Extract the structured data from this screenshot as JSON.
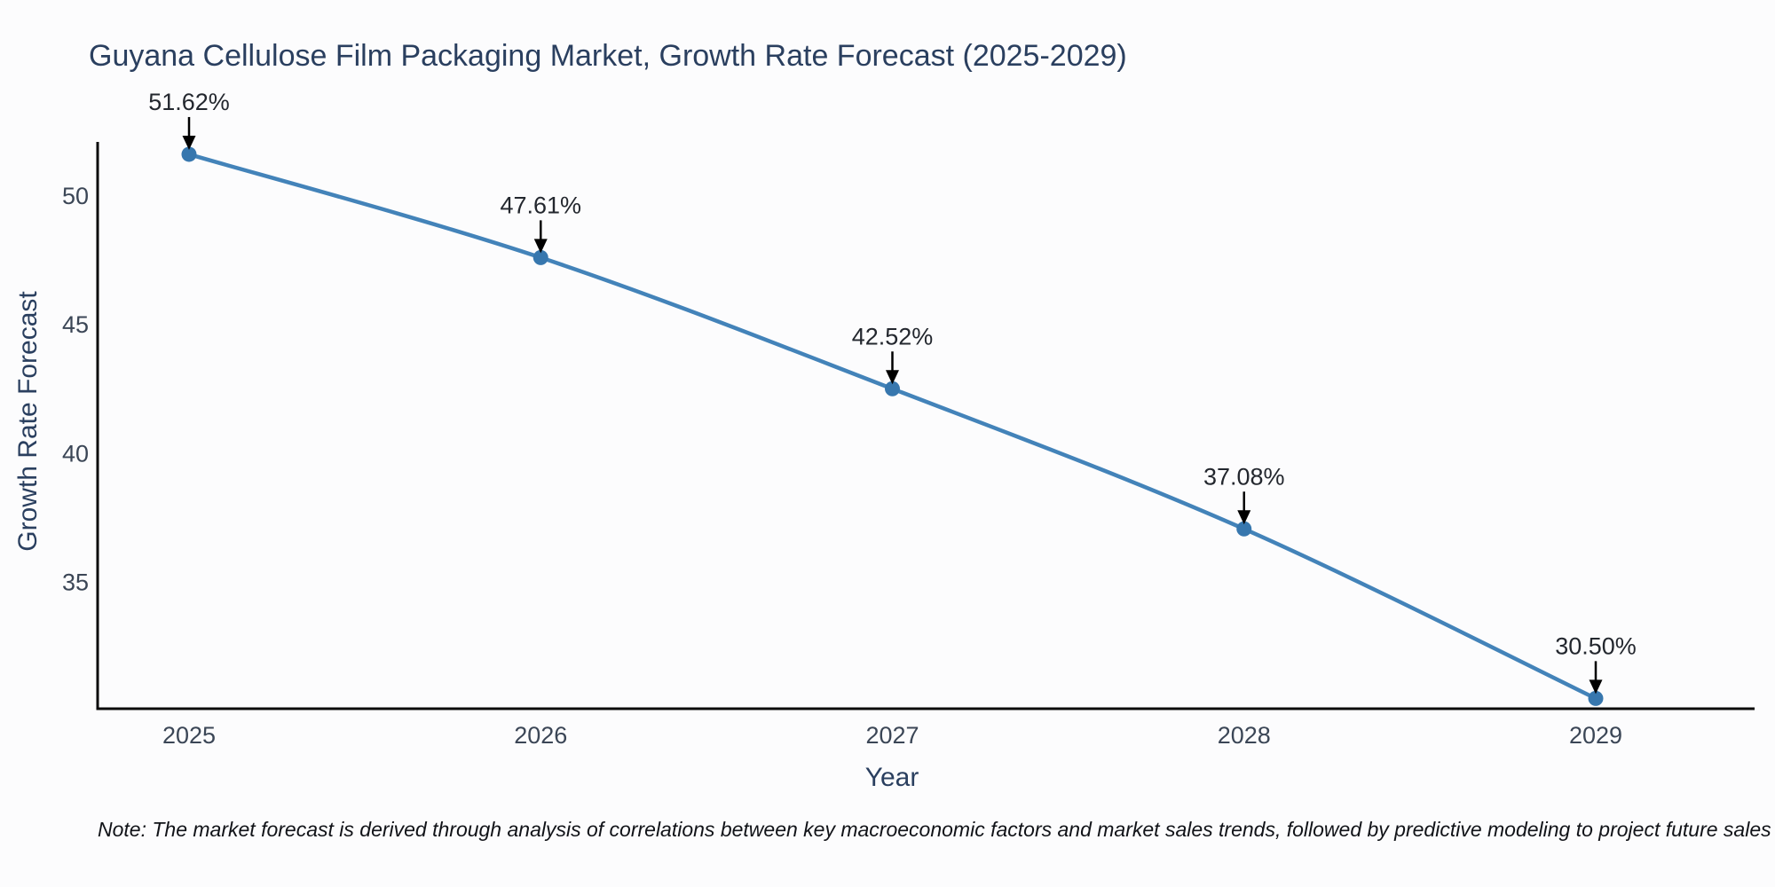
{
  "title": "Guyana Cellulose Film Packaging Market, Growth Rate Forecast (2025-2029)",
  "note": "Note: The market forecast is derived through analysis of correlations between key macroeconomic factors and market sales trends, followed by predictive modeling to project future sales",
  "chart_data": {
    "type": "line",
    "title": "Guyana Cellulose Film Packaging Market, Growth Rate Forecast (2025-2029)",
    "xlabel": "Year",
    "ylabel": "Growth Rate Forecast",
    "x": [
      "2025",
      "2026",
      "2027",
      "2028",
      "2029"
    ],
    "values": [
      51.62,
      47.61,
      42.52,
      37.08,
      30.5
    ],
    "point_labels": [
      "51.62%",
      "47.61%",
      "42.52%",
      "37.08%",
      "30.50%"
    ],
    "yticks": [
      35,
      40,
      45,
      50
    ],
    "ylim": [
      30.1,
      52.1
    ],
    "grid": false,
    "legend": "none",
    "annotation_style": "black-arrow-down-to-point",
    "colors": {
      "line": "#4383b9",
      "marker": "#3777ae",
      "axis": "#0a0a0a",
      "tick_label": "#3b4656",
      "title_text": "#2a3f5f",
      "annotation_text": "#23272e",
      "arrow": "#000000",
      "background": "#fcfcfd"
    }
  }
}
